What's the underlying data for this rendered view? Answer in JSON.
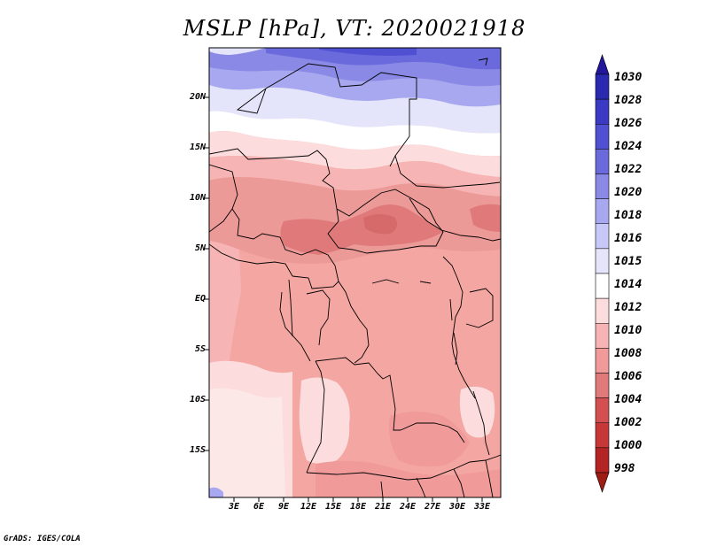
{
  "title": "MSLP [hPa], VT: 2020021918",
  "credit": "GrADS: IGES/COLA",
  "map": {
    "lat_labels": [
      "20N",
      "15N",
      "10N",
      "5N",
      "EQ",
      "5S",
      "10S",
      "15S"
    ],
    "lon_labels": [
      "3E",
      "6E",
      "9E",
      "12E",
      "15E",
      "18E",
      "21E",
      "24E",
      "27E",
      "30E",
      "33E"
    ]
  },
  "colorbar": {
    "levels": [
      "1030",
      "1028",
      "1026",
      "1024",
      "1022",
      "1020",
      "1018",
      "1016",
      "1015",
      "1014",
      "1012",
      "1010",
      "1008",
      "1006",
      "1004",
      "1002",
      "1000",
      "998"
    ],
    "colors": [
      "#21169c",
      "#2a2ab0",
      "#3a3ac4",
      "#5050d2",
      "#6a6adc",
      "#8a8ae6",
      "#a8a8f0",
      "#c8c8f6",
      "#e4e4fa",
      "#ffffff",
      "#fcdcdc",
      "#f6b4b4",
      "#f09a9a",
      "#e07a7a",
      "#d45050",
      "#c83838",
      "#b42424",
      "#9e1c14"
    ]
  }
}
